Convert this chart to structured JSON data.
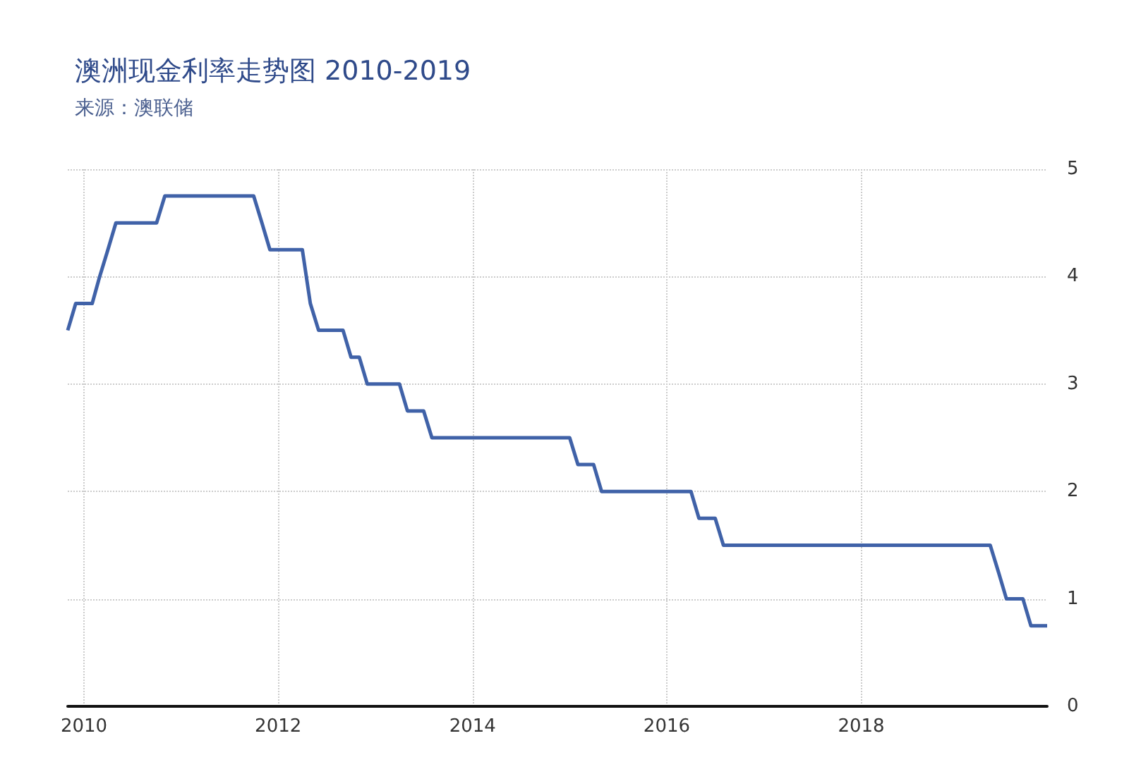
{
  "chart_data": {
    "type": "line",
    "title": "澳洲现金利率走势图 2010-2019",
    "subtitle": "来源：澳联储",
    "x": [
      "2009-11",
      "2009-12",
      "2010-02",
      "2010-03",
      "2010-04",
      "2010-05",
      "2010-10",
      "2010-11",
      "2011-10",
      "2011-11",
      "2011-12",
      "2012-04",
      "2012-05",
      "2012-06",
      "2012-09",
      "2012-10",
      "2012-11",
      "2012-12",
      "2013-04",
      "2013-05",
      "2013-07",
      "2013-08",
      "2015-01",
      "2015-02",
      "2015-04",
      "2015-05",
      "2016-04",
      "2016-05",
      "2016-07",
      "2016-08",
      "2019-05",
      "2019-06",
      "2019-07",
      "2019-09",
      "2019-10",
      "2019-12"
    ],
    "series": [
      {
        "color": "#4062a8",
        "values": [
          3.5,
          3.75,
          3.75,
          4.0,
          4.25,
          4.5,
          4.5,
          4.75,
          4.75,
          4.5,
          4.25,
          4.25,
          3.75,
          3.5,
          3.5,
          3.25,
          3.25,
          3.0,
          3.0,
          2.75,
          2.75,
          2.5,
          2.5,
          2.25,
          2.25,
          2.0,
          2.0,
          1.75,
          1.75,
          1.5,
          1.5,
          1.25,
          1.0,
          1.0,
          0.75,
          0.75
        ]
      }
    ],
    "xlim": [
      "2009-11",
      "2019-12"
    ],
    "xticks": [
      "2010",
      "2012",
      "2014",
      "2016",
      "2018"
    ],
    "ylim": [
      0,
      5
    ],
    "yticks": [
      0,
      1,
      2,
      3,
      4,
      5
    ],
    "grid": true,
    "marker": "none",
    "line_style": "solid"
  }
}
